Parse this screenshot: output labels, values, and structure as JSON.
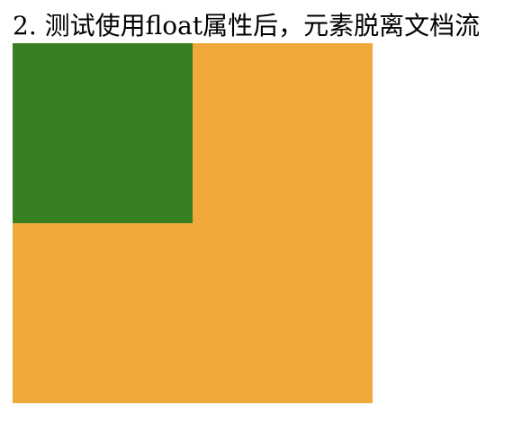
{
  "heading": {
    "text": "2. 测试使用float属性后，元素脱离文档流"
  },
  "boxes": {
    "float_box": {
      "color": "#387F23"
    },
    "static_box": {
      "color": "#F2A93C"
    }
  }
}
